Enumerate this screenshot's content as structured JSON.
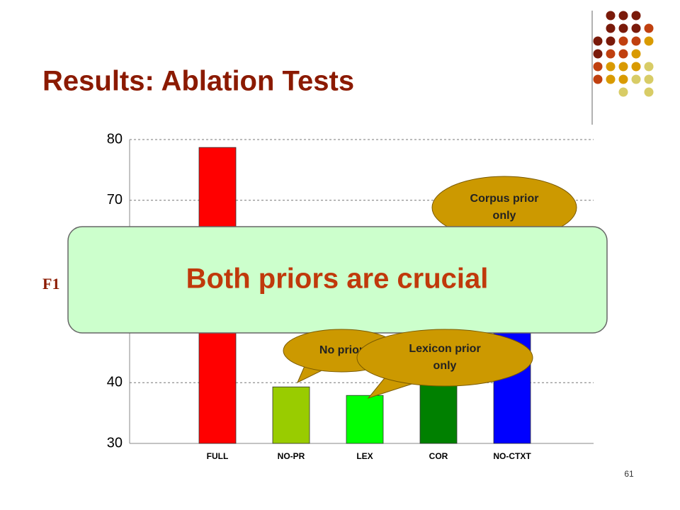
{
  "chart_data": {
    "type": "bar",
    "title": "Results: Ablation Tests",
    "y_label": "F1",
    "categories": [
      "FULL",
      "NO-PR",
      "LEX",
      "COR",
      "NO-CTXT"
    ],
    "values": [
      78.7,
      39.3,
      37.9,
      63,
      58
    ],
    "colors": [
      "#ff0000",
      "#99cc00",
      "#00ff00",
      "#008000",
      "#0000ff"
    ],
    "ylim": [
      30,
      80
    ],
    "yticks": [
      30,
      40,
      50,
      60,
      70,
      80
    ],
    "grid": true,
    "callouts": [
      "Corpus prior only",
      "No prior",
      "Lexicon prior only"
    ],
    "banner": "Both priors are crucial",
    "page_number": "61"
  }
}
